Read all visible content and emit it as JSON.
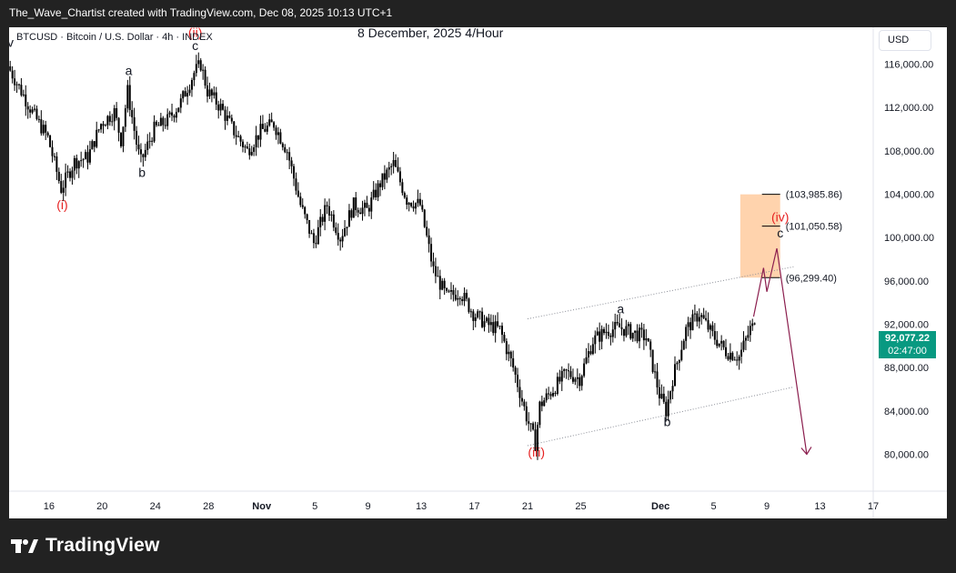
{
  "header": {
    "attribution": "The_Wave_Chartist created with TradingView.com, Dec 08, 2025 10:13 UTC+1"
  },
  "chart_header": {
    "symbol_line": "BTCUSD · Bitcoin / U.S. Dollar · 4h · INDEX",
    "caption": "8 December, 2025   4/Hour",
    "currency": "USD"
  },
  "price_tag": {
    "price": "92,077.22",
    "countdown": "02:47:00"
  },
  "footer": {
    "brand": "TradingView"
  },
  "colors": {
    "up_candle": "#089981",
    "down_candle": "#000000",
    "wave_red": "#e62121",
    "projection": "#8b1e4e",
    "zone_fill": "#ffd3ad",
    "text": "#131722"
  },
  "chart_data": {
    "type": "candlestick",
    "title": "8 December, 2025   4/Hour",
    "symbol": "BTCUSD",
    "timeframe": "4h",
    "x_range": [
      "2025-10-13",
      "2025-12-17"
    ],
    "ylim": [
      76600,
      119400
    ],
    "y_ticks": [
      80000,
      84000,
      88000,
      92000,
      96000,
      100000,
      104000,
      108000,
      112000,
      116000
    ],
    "y_tick_labels": [
      "80,000.00",
      "84,000.00",
      "88,000.00",
      "92,000.00",
      "96,000.00",
      "100,000.00",
      "104,000.00",
      "108,000.00",
      "112,000.00",
      "116,000.00"
    ],
    "x_ticks": [
      {
        "date": "2025-10-16",
        "label": "16"
      },
      {
        "date": "2025-10-20",
        "label": "20"
      },
      {
        "date": "2025-10-24",
        "label": "24"
      },
      {
        "date": "2025-10-28",
        "label": "28"
      },
      {
        "date": "2025-11-01",
        "label": "Nov"
      },
      {
        "date": "2025-11-05",
        "label": "5"
      },
      {
        "date": "2025-11-09",
        "label": "9"
      },
      {
        "date": "2025-11-13",
        "label": "13"
      },
      {
        "date": "2025-11-17",
        "label": "17"
      },
      {
        "date": "2025-11-21",
        "label": "21"
      },
      {
        "date": "2025-11-25",
        "label": "25"
      },
      {
        "date": "2025-12-01",
        "label": "Dec"
      },
      {
        "date": "2025-12-05",
        "label": "5"
      },
      {
        "date": "2025-12-09",
        "label": "9"
      },
      {
        "date": "2025-12-13",
        "label": "13"
      },
      {
        "date": "2025-12-17",
        "label": "17"
      }
    ],
    "last_price": 92077.22,
    "price_path": [
      [
        "2025-10-13",
        115800
      ],
      [
        "2025-10-14",
        113500
      ],
      [
        "2025-10-15",
        111200
      ],
      [
        "2025-10-16",
        109200
      ],
      [
        "2025-10-17",
        104500
      ],
      [
        "2025-10-18",
        107000
      ],
      [
        "2025-10-19",
        107400
      ],
      [
        "2025-10-20",
        110500
      ],
      [
        "2025-10-21",
        111600
      ],
      [
        "2025-10-21T12:00",
        109000
      ],
      [
        "2025-10-22",
        113500
      ],
      [
        "2025-10-22T18:00",
        108100
      ],
      [
        "2025-10-23",
        107000
      ],
      [
        "2025-10-24",
        110000
      ],
      [
        "2025-10-25",
        110800
      ],
      [
        "2025-10-26",
        112500
      ],
      [
        "2025-10-27",
        115200
      ],
      [
        "2025-10-27T12:00",
        116000
      ],
      [
        "2025-10-28",
        113500
      ],
      [
        "2025-10-29",
        112000
      ],
      [
        "2025-10-30",
        109800
      ],
      [
        "2025-10-31",
        108000
      ],
      [
        "2025-11-01",
        109800
      ],
      [
        "2025-11-02",
        110500
      ],
      [
        "2025-11-03",
        108000
      ],
      [
        "2025-11-04",
        103000
      ],
      [
        "2025-11-05",
        99500
      ],
      [
        "2025-11-06",
        103000
      ],
      [
        "2025-11-07",
        100000
      ],
      [
        "2025-11-08",
        103000
      ],
      [
        "2025-11-09",
        102500
      ],
      [
        "2025-11-10",
        105000
      ],
      [
        "2025-11-11",
        106800
      ],
      [
        "2025-11-12",
        103500
      ],
      [
        "2025-11-13",
        103000
      ],
      [
        "2025-11-14",
        97000
      ],
      [
        "2025-11-15",
        94500
      ],
      [
        "2025-11-16",
        95000
      ],
      [
        "2025-11-17",
        93000
      ],
      [
        "2025-11-18",
        92000
      ],
      [
        "2025-11-19",
        91500
      ],
      [
        "2025-11-20",
        88000
      ],
      [
        "2025-11-21",
        83500
      ],
      [
        "2025-11-21T16:00",
        81000
      ],
      [
        "2025-11-22",
        84500
      ],
      [
        "2025-11-23",
        86000
      ],
      [
        "2025-11-24",
        87500
      ],
      [
        "2025-11-25",
        87000
      ],
      [
        "2025-11-26",
        90500
      ],
      [
        "2025-11-27",
        91400
      ],
      [
        "2025-11-28",
        91700
      ],
      [
        "2025-11-29",
        91200
      ],
      [
        "2025-11-30",
        90800
      ],
      [
        "2025-12-01",
        85500
      ],
      [
        "2025-12-01T12:00",
        84000
      ],
      [
        "2025-12-02",
        87000
      ],
      [
        "2025-12-03",
        91500
      ],
      [
        "2025-12-04",
        93000
      ],
      [
        "2025-12-05",
        91000
      ],
      [
        "2025-12-06",
        89500
      ],
      [
        "2025-12-07",
        89000
      ],
      [
        "2025-12-08",
        92077.22
      ]
    ],
    "fib_levels": [
      {
        "price": 103985.86,
        "label": "(103,985.86)"
      },
      {
        "price": 101050.58,
        "label": "(101,050.58)"
      },
      {
        "price": 96299.4,
        "label": "(96,299.40)"
      }
    ],
    "target_zone": {
      "from_date": "2025-12-07",
      "to_date": "2025-12-10",
      "low": 96299.4,
      "high": 103985.86
    },
    "channel": {
      "upper": [
        [
          "2025-11-21",
          92500
        ],
        [
          "2025-12-11",
          97300
        ]
      ],
      "lower": [
        [
          "2025-11-21",
          80800
        ],
        [
          "2025-12-11",
          86200
        ]
      ]
    },
    "projection": [
      [
        "2025-12-08",
        92700
      ],
      [
        "2025-12-08T18:00",
        97200
      ],
      [
        "2025-12-09",
        95000
      ],
      [
        "2025-12-09T18:00",
        99000
      ],
      [
        "2025-12-12",
        80000
      ]
    ],
    "wave_labels": [
      {
        "text": "iv",
        "date": "2025-10-13",
        "price": 117600,
        "color": "text"
      },
      {
        "text": "(i)",
        "date": "2025-10-17",
        "price": 102600,
        "color": "wave_red"
      },
      {
        "text": "a",
        "date": "2025-10-22",
        "price": 115000,
        "color": "text"
      },
      {
        "text": "b",
        "date": "2025-10-23",
        "price": 105600,
        "color": "text"
      },
      {
        "text": "(ii)",
        "date": "2025-10-27",
        "price": 118500,
        "color": "wave_red"
      },
      {
        "text": "c",
        "date": "2025-10-27",
        "price": 117300,
        "color": "text"
      },
      {
        "text": "(iii)",
        "date": "2025-11-21T16:00",
        "price": 79800,
        "color": "wave_red"
      },
      {
        "text": "a",
        "date": "2025-11-28",
        "price": 93000,
        "color": "text"
      },
      {
        "text": "b",
        "date": "2025-12-01T12:00",
        "price": 82600,
        "color": "text"
      },
      {
        "text": "(iv)",
        "date": "2025-12-10",
        "price": 101500,
        "color": "wave_red"
      },
      {
        "text": "c",
        "date": "2025-12-10",
        "price": 100000,
        "color": "text"
      }
    ]
  }
}
